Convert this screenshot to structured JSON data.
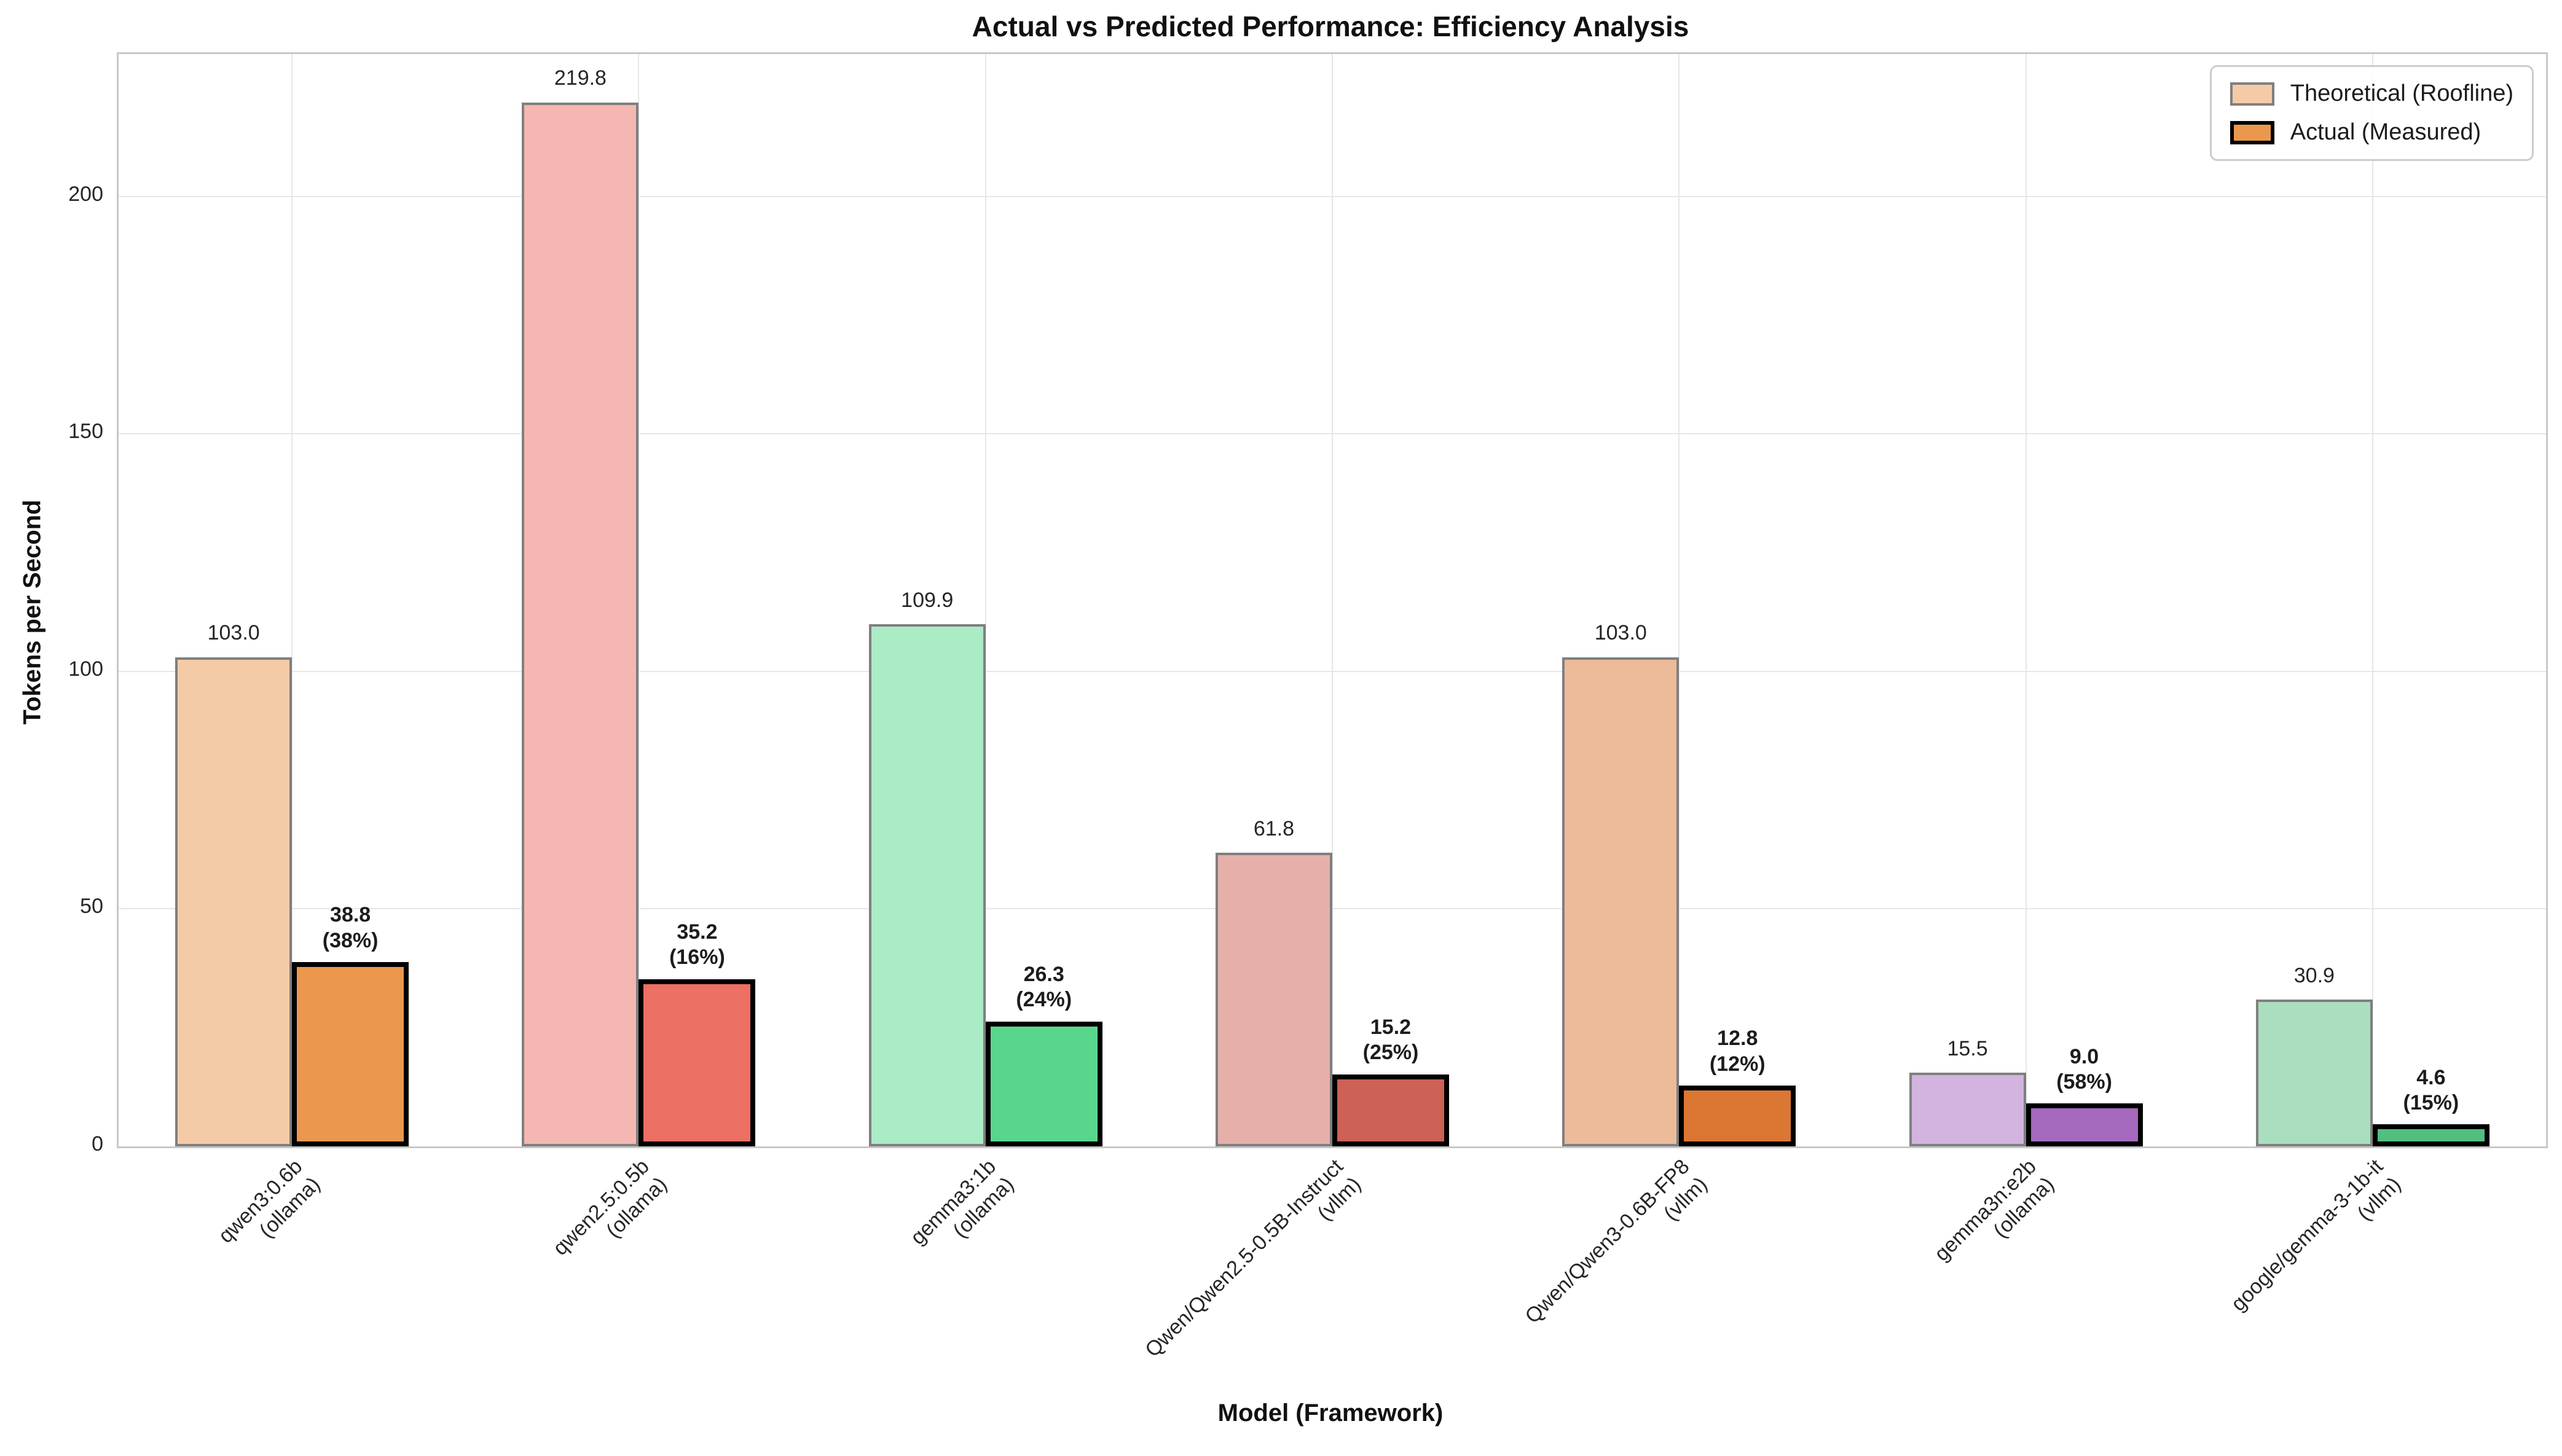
{
  "title": "Actual vs Predicted Performance: Efficiency Analysis",
  "chart_data": {
    "type": "bar",
    "title": "Actual vs Predicted Performance: Efficiency Analysis",
    "xlabel": "Model (Framework)",
    "ylabel": "Tokens per Second",
    "ylim": [
      0,
      230
    ],
    "yticks": [
      0,
      50,
      100,
      150,
      200
    ],
    "grid": true,
    "legend_position": "upper right",
    "categories": [
      {
        "model": "qwen3:0.6b",
        "framework": "(ollama)"
      },
      {
        "model": "qwen2.5:0.5b",
        "framework": "(ollama)"
      },
      {
        "model": "gemma3:1b",
        "framework": "(ollama)"
      },
      {
        "model": "Qwen/Qwen2.5-0.5B-Instruct",
        "framework": "(vllm)"
      },
      {
        "model": "Qwen/Qwen3-0.6B-FP8",
        "framework": "(vllm)"
      },
      {
        "model": "gemma3n:e2b",
        "framework": "(ollama)"
      },
      {
        "model": "google/gemma-3-1b-it",
        "framework": "(vllm)"
      }
    ],
    "series": [
      {
        "name": "Theoretical (Roofline)",
        "values": [
          103.0,
          219.8,
          109.9,
          61.8,
          103.0,
          15.5,
          30.9
        ],
        "fill_colors": [
          "#F5CBA7",
          "#F5B7B1",
          "#ABEBC6",
          "#E6B0AA",
          "#EDBB99",
          "#D2B4DE",
          "#A9DFBF"
        ],
        "edge_color": "#7f7f7f"
      },
      {
        "name": "Actual (Measured)",
        "values": [
          38.8,
          35.2,
          26.3,
          15.2,
          12.8,
          9.0,
          4.6
        ],
        "fill_colors": [
          "#EB984E",
          "#EC7063",
          "#58D68D",
          "#CD6155",
          "#DC7633",
          "#A569BD",
          "#52BE80"
        ],
        "edge_color": "#000000"
      }
    ],
    "efficiency_pct": [
      38,
      16,
      24,
      25,
      12,
      58,
      15
    ],
    "legend": {
      "entries": [
        {
          "label": "Theoretical (Roofline)",
          "fill": "#F5CBA7"
        },
        {
          "label": "Actual (Measured)",
          "fill": "#EB984E"
        }
      ]
    },
    "colors": {
      "grid": "#e7e7e7",
      "spine": "#c8c8c8",
      "theoretical_edge": "#7f7f7f",
      "actual_edge": "#000000"
    }
  }
}
